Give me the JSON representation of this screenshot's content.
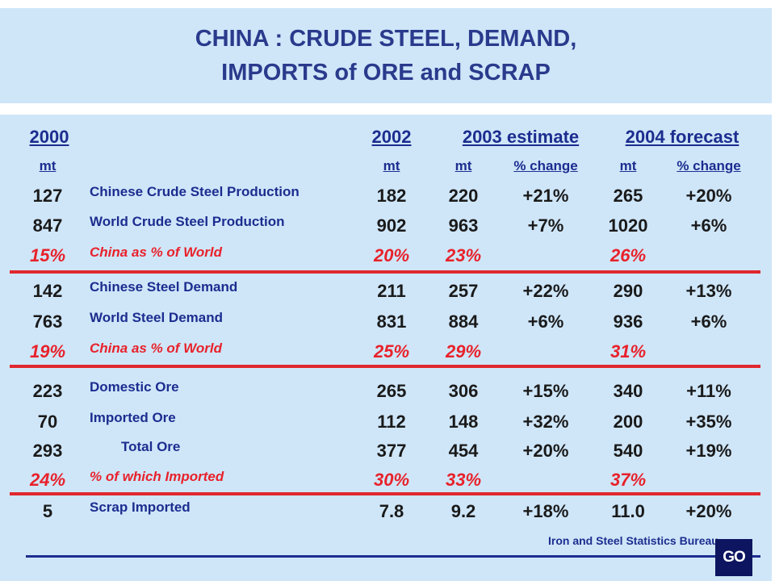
{
  "title": {
    "line1": "CHINA : CRUDE STEEL, DEMAND,",
    "line2": "IMPORTS of ORE and SCRAP"
  },
  "headers": {
    "y2000": "2000",
    "y2002": "2002",
    "y2003": "2003 estimate",
    "y2004": "2004 forecast"
  },
  "units": {
    "u2000": "mt",
    "u2002": "mt",
    "u2003": "mt",
    "u2003_pct": "% change",
    "u2004": "mt",
    "u2004_pct": "% change"
  },
  "rows": [
    {
      "v2000": "127",
      "label": "Chinese Crude Steel Production",
      "v2002": "182",
      "v2003": "220",
      "p2003": "+21%",
      "v2004": "265",
      "p2004": "+20%"
    },
    {
      "v2000": "847",
      "label": "World Crude Steel Production",
      "v2002": "902",
      "v2003": "963",
      "p2003": "+7%",
      "v2004": "1020",
      "p2004": "+6%"
    },
    {
      "v2000": "15%",
      "label": "China as % of World",
      "v2002": "20%",
      "v2003": "23%",
      "p2003": "",
      "v2004": "26%",
      "p2004": ""
    },
    {
      "v2000": "142",
      "label": "Chinese Steel Demand",
      "v2002": "211",
      "v2003": "257",
      "p2003": "+22%",
      "v2004": "290",
      "p2004": "+13%"
    },
    {
      "v2000": "763",
      "label": "World Steel Demand",
      "v2002": "831",
      "v2003": "884",
      "p2003": "+6%",
      "v2004": "936",
      "p2004": "+6%"
    },
    {
      "v2000": "19%",
      "label": "China as % of World",
      "v2002": "25%",
      "v2003": "29%",
      "p2003": "",
      "v2004": "31%",
      "p2004": ""
    },
    {
      "v2000": "223",
      "label": "Domestic Ore",
      "v2002": "265",
      "v2003": "306",
      "p2003": "+15%",
      "v2004": "340",
      "p2004": "+11%"
    },
    {
      "v2000": "70",
      "label": "Imported Ore",
      "v2002": "112",
      "v2003": "148",
      "p2003": "+32%",
      "v2004": "200",
      "p2004": "+35%"
    },
    {
      "v2000": "293",
      "label": "Total Ore",
      "v2002": "377",
      "v2003": "454",
      "p2003": "+20%",
      "v2004": "540",
      "p2004": "+19%"
    },
    {
      "v2000": "24%",
      "label": "% of which Imported",
      "v2002": "30%",
      "v2003": "33%",
      "p2003": "",
      "v2004": "37%",
      "p2004": ""
    },
    {
      "v2000": "5",
      "label": "Scrap Imported",
      "v2002": "7.8",
      "v2003": "9.2",
      "p2003": "+18%",
      "v2004": "11.0",
      "p2004": "+20%"
    }
  ],
  "source": "Iron and Steel Statistics Bureau",
  "logo": "GO",
  "colors": {
    "background": "#cfe6f9",
    "heading": "#1c2d8f",
    "highlight": "#e8222b",
    "logo": "#0d1560"
  }
}
